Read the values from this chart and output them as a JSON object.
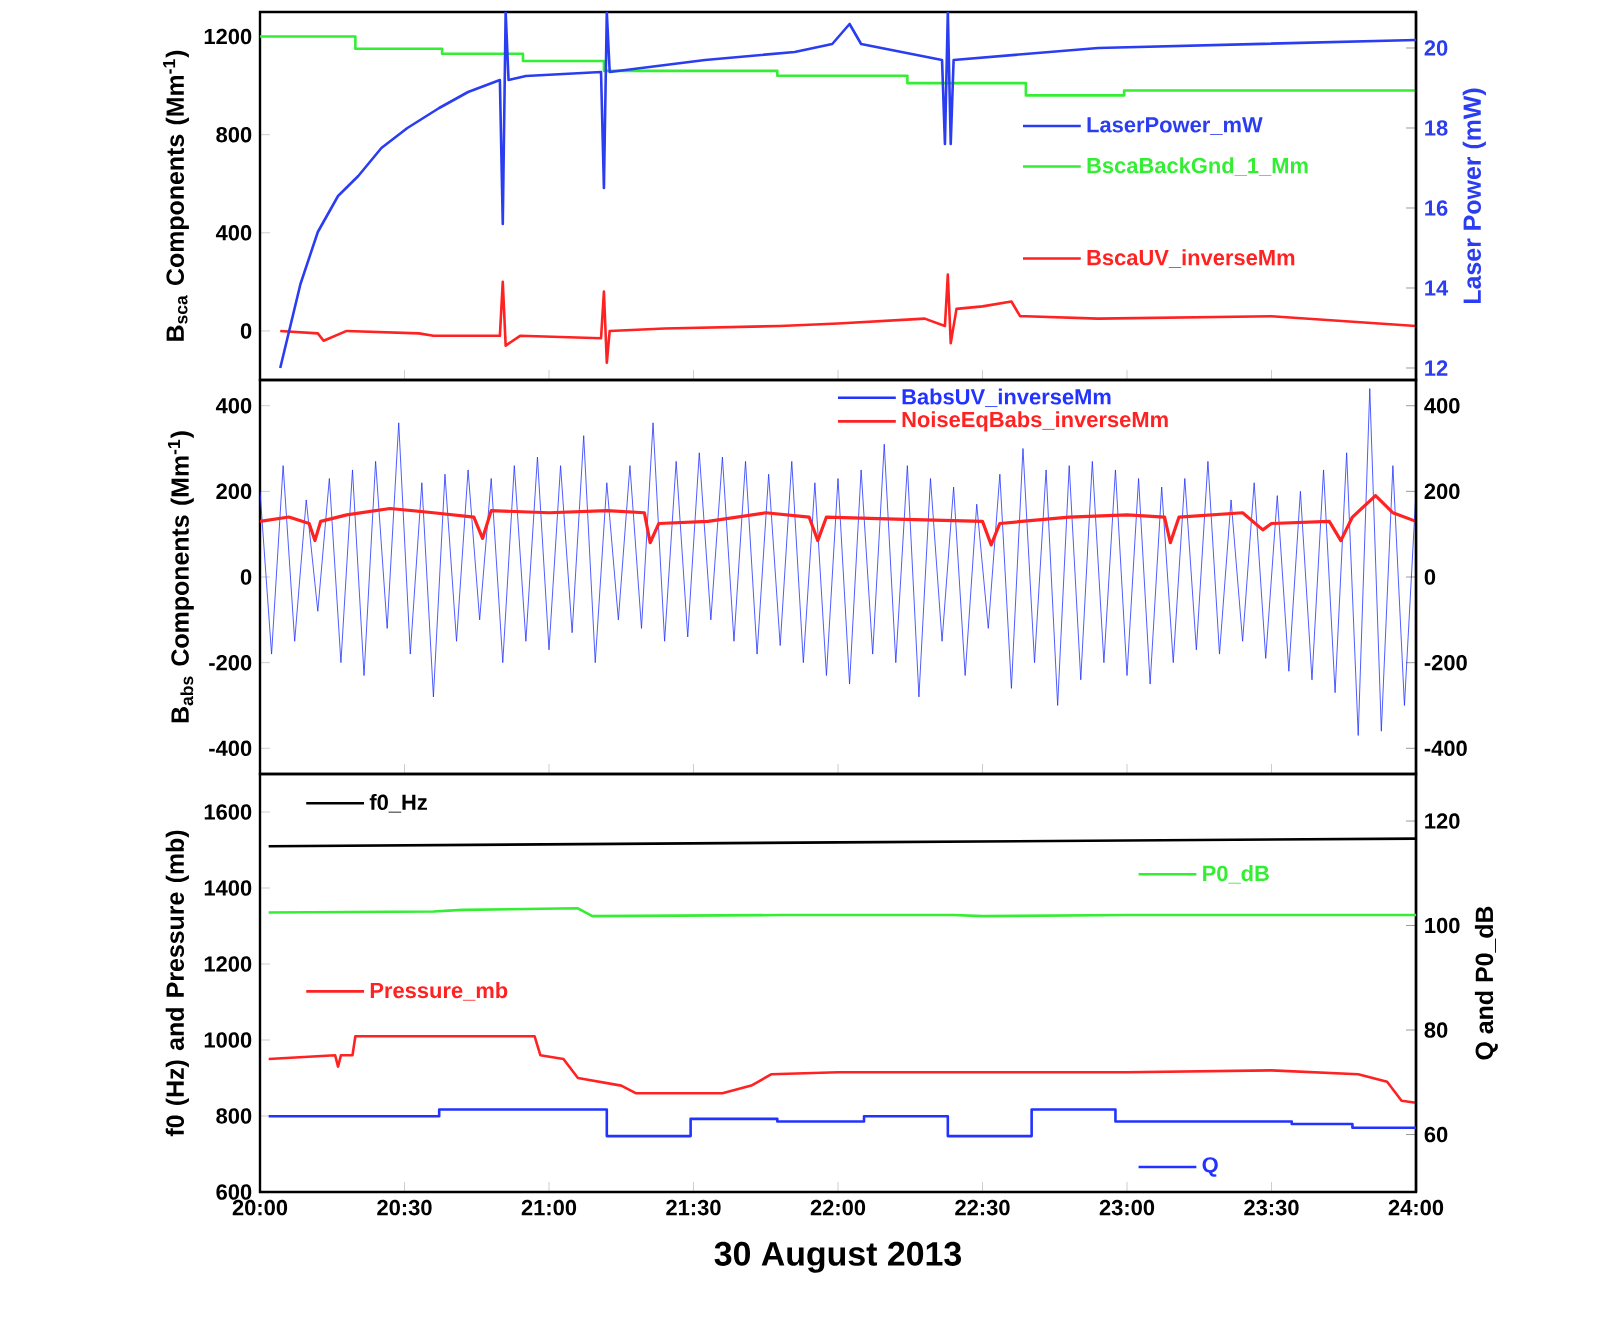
{
  "chart_data": [
    {
      "type": "line",
      "ylabel": "B$_{sca}$ Components (Mm$^{-1}$)",
      "y2label": "Laser Power (mW)",
      "xlim": [
        20,
        24
      ],
      "xticks": [
        {
          "value": 20,
          "label": null
        },
        {
          "value": 20.5,
          "label": null
        },
        {
          "value": 21,
          "label": null
        },
        {
          "value": 21.5,
          "label": null
        },
        {
          "value": 22,
          "label": null
        },
        {
          "value": 22.5,
          "label": null
        },
        {
          "value": 23,
          "label": null
        },
        {
          "value": 23.5,
          "label": null
        },
        {
          "value": 24,
          "label": null
        }
      ],
      "tick_labels": "y",
      "legend": "right",
      "ylim": [
        -200,
        1300
      ],
      "yticks": [
        0,
        400,
        800,
        1200
      ],
      "y2lim": [
        11.7,
        20.9
      ],
      "y2ticks": [
        12,
        14,
        16,
        18,
        20
      ],
      "series": [
        {
          "name": "LaserPower_mW",
          "color": "#2b3df0",
          "axis": "y2",
          "x": [
            20.07,
            20.14,
            20.2,
            20.27,
            20.34,
            20.42,
            20.51,
            20.62,
            20.72,
            20.83,
            20.84,
            20.85,
            20.86,
            20.92,
            21.18,
            21.19,
            21.2,
            21.21,
            21.54,
            21.85,
            21.98,
            22.04,
            22.08,
            22.36,
            22.37,
            22.38,
            22.39,
            22.4,
            22.9,
            24.0
          ],
          "values": [
            12,
            14.1,
            15.4,
            16.3,
            16.8,
            17.5,
            18,
            18.5,
            18.9,
            19.2,
            15.6,
            20.9,
            19.2,
            19.3,
            19.4,
            16.5,
            20.9,
            19.4,
            19.7,
            19.9,
            20.1,
            20.6,
            20.1,
            19.7,
            17.6,
            20.9,
            17.6,
            19.7,
            20,
            20.2
          ]
        },
        {
          "name": "BscaBackGnd_1_Mm",
          "color": "#33ee33",
          "type": "step",
          "x": [
            20.0,
            20.33,
            20.63,
            20.91,
            21.19,
            21.79,
            22.24,
            22.65,
            22.99,
            24.0
          ],
          "values": [
            1200,
            1150,
            1130,
            1100,
            1060,
            1040,
            1010,
            960,
            980,
            980
          ]
        },
        {
          "name": "BscaUV_inverseMm",
          "color": "#ff2222",
          "x": [
            20.07,
            20.2,
            20.22,
            20.3,
            20.55,
            20.6,
            20.83,
            20.84,
            20.85,
            20.9,
            21.18,
            21.19,
            21.2,
            21.21,
            21.4,
            21.8,
            22.0,
            22.3,
            22.37,
            22.38,
            22.39,
            22.41,
            22.5,
            22.6,
            22.63,
            22.65,
            22.9,
            23.5,
            24.0
          ],
          "values": [
            0,
            -10,
            -40,
            0,
            -10,
            -20,
            -20,
            200,
            -60,
            -20,
            -30,
            160,
            -130,
            0,
            10,
            20,
            30,
            50,
            20,
            230,
            -50,
            90,
            100,
            120,
            60,
            60,
            50,
            60,
            20
          ]
        }
      ]
    },
    {
      "type": "line",
      "ylabel": "B$_{abs}$ Components (Mm$^{-1}$)",
      "xlim": [
        20,
        24
      ],
      "xticks": [
        {
          "value": 20,
          "label": null
        },
        {
          "value": 20.5,
          "label": null
        },
        {
          "value": 21,
          "label": null
        },
        {
          "value": 21.5,
          "label": null
        },
        {
          "value": 22,
          "label": null
        },
        {
          "value": 22.5,
          "label": null
        },
        {
          "value": 23,
          "label": null
        },
        {
          "value": 23.5,
          "label": null
        },
        {
          "value": 24,
          "label": null
        }
      ],
      "tick_labels": "y",
      "legend": "top",
      "ylim": [
        -460,
        460
      ],
      "yticks": [
        -400,
        -200,
        0,
        200,
        400
      ],
      "y2lim": [
        -460,
        460
      ],
      "y2ticks": [
        -400,
        -200,
        0,
        200,
        400
      ],
      "series": [
        {
          "name": "BabsUV_inverseMm",
          "color": "#2233ff",
          "x": [
            20.0,
            20.04,
            20.08,
            20.12,
            20.16,
            20.2,
            20.24,
            20.28,
            20.32,
            20.36,
            20.4,
            20.44,
            20.48,
            20.52,
            20.56,
            20.6,
            20.64,
            20.68,
            20.72,
            20.76,
            20.8,
            20.84,
            20.88,
            20.92,
            20.96,
            21.0,
            21.04,
            21.08,
            21.12,
            21.16,
            21.2,
            21.24,
            21.28,
            21.32,
            21.36,
            21.4,
            21.44,
            21.48,
            21.52,
            21.56,
            21.6,
            21.64,
            21.68,
            21.72,
            21.76,
            21.8,
            21.84,
            21.88,
            21.92,
            21.96,
            22.0,
            22.04,
            22.08,
            22.12,
            22.16,
            22.2,
            22.24,
            22.28,
            22.32,
            22.36,
            22.4,
            22.44,
            22.48,
            22.52,
            22.56,
            22.6,
            22.64,
            22.68,
            22.72,
            22.76,
            22.8,
            22.84,
            22.88,
            22.92,
            22.96,
            23.0,
            23.04,
            23.08,
            23.12,
            23.16,
            23.2,
            23.24,
            23.28,
            23.32,
            23.36,
            23.4,
            23.44,
            23.48,
            23.52,
            23.56,
            23.6,
            23.64,
            23.68,
            23.72,
            23.76,
            23.8,
            23.84,
            23.88,
            23.92,
            23.96,
            24.0
          ],
          "values": [
            200,
            -180,
            260,
            -150,
            180,
            -80,
            230,
            -200,
            250,
            -230,
            270,
            -120,
            360,
            -180,
            220,
            -280,
            240,
            -150,
            250,
            -100,
            230,
            -200,
            260,
            -150,
            280,
            -170,
            260,
            -130,
            330,
            -200,
            220,
            -100,
            260,
            -120,
            360,
            -150,
            270,
            -140,
            290,
            -100,
            280,
            -150,
            270,
            -180,
            240,
            -160,
            270,
            -200,
            220,
            -230,
            230,
            -250,
            250,
            -180,
            310,
            -200,
            260,
            -280,
            230,
            -150,
            210,
            -230,
            170,
            -120,
            240,
            -260,
            300,
            -200,
            250,
            -300,
            260,
            -240,
            270,
            -200,
            250,
            -230,
            230,
            -250,
            210,
            -200,
            230,
            -170,
            270,
            -180,
            180,
            -150,
            220,
            -190,
            190,
            -220,
            200,
            -240,
            250,
            -270,
            290,
            -370,
            440,
            -360,
            260,
            -300,
            200
          ]
        },
        {
          "name": "NoiseEqBabs_inverseMm",
          "color": "#ff2222",
          "x": [
            20.0,
            20.1,
            20.17,
            20.19,
            20.21,
            20.3,
            20.45,
            20.6,
            20.74,
            20.77,
            20.8,
            21.0,
            21.2,
            21.33,
            21.35,
            21.38,
            21.55,
            21.75,
            21.9,
            21.93,
            21.96,
            22.2,
            22.5,
            22.53,
            22.56,
            22.8,
            23.0,
            23.13,
            23.15,
            23.18,
            23.4,
            23.47,
            23.5,
            23.7,
            23.74,
            23.78,
            23.86,
            23.92,
            24.0
          ],
          "values": [
            130,
            140,
            125,
            85,
            130,
            145,
            160,
            150,
            140,
            90,
            155,
            150,
            155,
            150,
            80,
            125,
            130,
            150,
            140,
            85,
            140,
            135,
            130,
            75,
            125,
            140,
            145,
            140,
            80,
            140,
            150,
            110,
            125,
            130,
            85,
            140,
            190,
            150,
            130
          ]
        }
      ]
    },
    {
      "type": "line",
      "ylabel": "f0 (Hz) and Pressure (mb)",
      "y2label": "Q and P0_dB",
      "xlabel": "30 August 2013",
      "legend": "left",
      "xlim": [
        20,
        24
      ],
      "xticks": [
        {
          "value": 20,
          "label": "20:00"
        },
        {
          "value": 20.5,
          "label": "20:30"
        },
        {
          "value": 21,
          "label": "21:00"
        },
        {
          "value": 21.5,
          "label": "21:30"
        },
        {
          "value": 22,
          "label": "22:00"
        },
        {
          "value": 22.5,
          "label": "22:30"
        },
        {
          "value": 23,
          "label": "23:00"
        },
        {
          "value": 23.5,
          "label": "23:30"
        },
        {
          "value": 24,
          "label": "24:00"
        }
      ],
      "ylim": [
        600,
        1700
      ],
      "yticks": [
        600,
        800,
        1000,
        1200,
        1400,
        1600
      ],
      "y2lim": [
        49,
        129
      ],
      "y2ticks": [
        60,
        80,
        100,
        120
      ],
      "series": [
        {
          "name": "f0_Hz",
          "color": "#000000",
          "x": [
            20.03,
            22,
            24
          ],
          "values": [
            1510,
            1520,
            1530
          ]
        },
        {
          "name": "P0_dB",
          "color": "#33ee33",
          "axis": "y2",
          "x": [
            20.03,
            20.6,
            20.7,
            21.1,
            21.15,
            21.8,
            22.4,
            22.5,
            23,
            24
          ],
          "values": [
            102.5,
            102.7,
            103,
            103.3,
            101.8,
            102,
            102,
            101.8,
            102,
            102
          ]
        },
        {
          "name": "Pressure_mb",
          "color": "#ff2222",
          "x": [
            20.03,
            20.26,
            20.27,
            20.28,
            20.32,
            20.33,
            20.95,
            20.97,
            21.05,
            21.1,
            21.25,
            21.3,
            21.6,
            21.7,
            21.77,
            22.0,
            22.5,
            23.0,
            23.5,
            23.8,
            23.9,
            23.95,
            24.0
          ],
          "values": [
            950,
            960,
            930,
            960,
            960,
            1010,
            1010,
            960,
            950,
            900,
            880,
            860,
            860,
            880,
            910,
            915,
            915,
            915,
            920,
            910,
            890,
            840,
            835
          ]
        },
        {
          "name": "Q",
          "color": "#2233ff",
          "axis": "y2",
          "type": "step",
          "x": [
            20.03,
            20.62,
            21.2,
            21.49,
            21.79,
            22.09,
            22.38,
            22.67,
            22.96,
            23.57,
            23.78,
            24.0
          ],
          "values": [
            63.5,
            64.8,
            59.7,
            63,
            62.5,
            63.5,
            59.7,
            64.8,
            62.5,
            62,
            61.3,
            61.3
          ]
        }
      ]
    }
  ]
}
